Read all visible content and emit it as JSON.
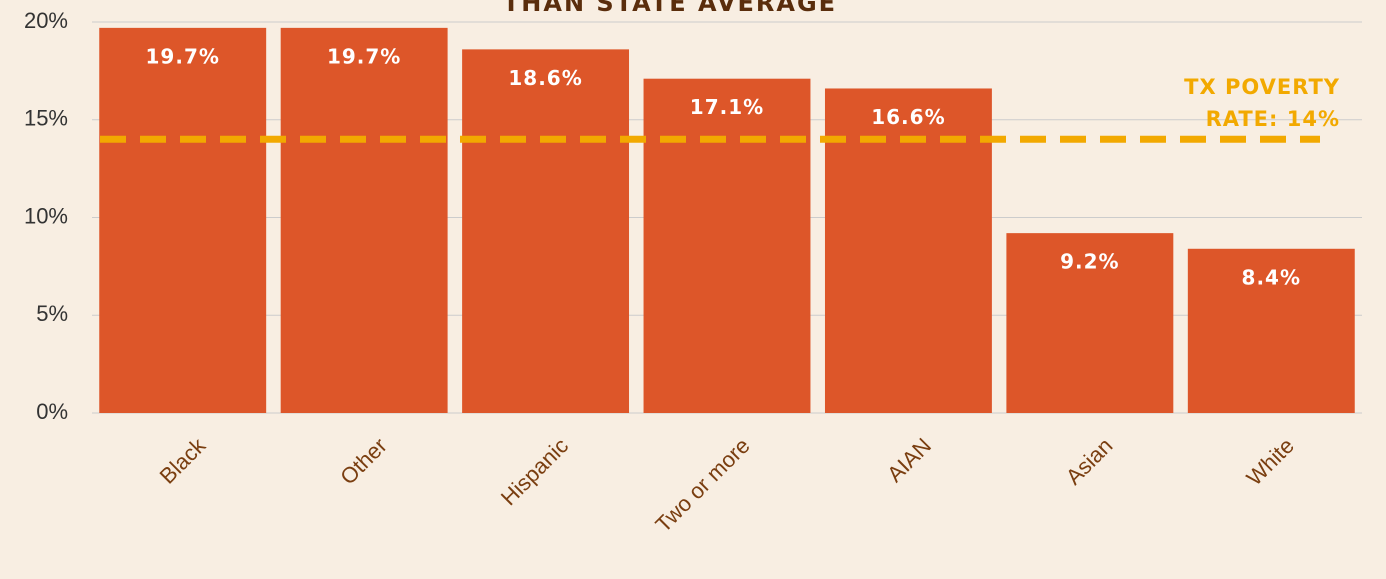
{
  "chart_data": {
    "type": "bar",
    "title": "THAN STATE AVERAGE",
    "categories": [
      "Black",
      "Other",
      "Hispanic",
      "Two or more",
      "AIAN",
      "Asian",
      "White"
    ],
    "values": [
      19.7,
      19.7,
      18.6,
      17.1,
      16.6,
      9.2,
      8.4
    ],
    "value_labels": [
      "19.7%",
      "19.7%",
      "18.6%",
      "17.1%",
      "16.6%",
      "9.2%",
      "8.4%"
    ],
    "color": "#dd5629",
    "ylim": [
      0,
      20
    ],
    "yticks": [
      {
        "value": 0,
        "label": "0%"
      },
      {
        "value": 5,
        "label": "5%"
      },
      {
        "value": 10,
        "label": "10%"
      },
      {
        "value": 15,
        "label": "15%"
      },
      {
        "value": 20,
        "label": "20%"
      }
    ],
    "grid": true,
    "reference_line": {
      "value": 14,
      "label": [
        "TX POVERTY",
        "RATE: 14%"
      ],
      "color": "#f2a900"
    }
  }
}
